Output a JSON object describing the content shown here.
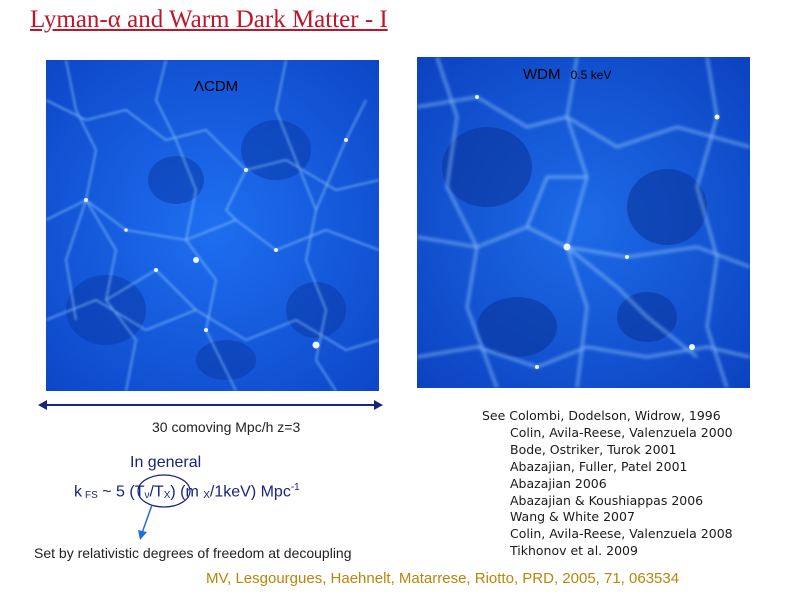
{
  "slide": {
    "title": "Lyman-α and Warm Dark Matter - I",
    "left_panel": {
      "label": "ΛCDM"
    },
    "right_panel": {
      "label_main": "WDM",
      "label_sub": "0.5 keV"
    },
    "scale_caption": "30 comoving Mpc/h  z=3",
    "in_general": "In general",
    "formula": {
      "k": "k",
      "fs": "FS",
      "approx": " ~ 5 (T",
      "nu": "ν",
      "slash": "/T",
      "x": "X",
      "m_open": ") (m ",
      "mx": "X",
      "rest": "/1keV) Mpc",
      "exp": "-1"
    },
    "annotation": "Set by relativistic degrees of freedom at decoupling",
    "references": [
      "See Colombi, Dodelson, Widrow, 1996",
      "Colin, Avila-Reese, Valenzuela 2000",
      "Bode, Ostriker, Turok 2001",
      "Abazajian, Fuller, Patel 2001",
      "Abazajian 2006",
      "Abazajian & Koushiappas 2006",
      "Wang & White 2007",
      "Colin, Avila-Reese, Valenzuela 2008",
      "Tikhonov et al. 2009"
    ],
    "footer": "MV, Lesgourgues, Haehnelt, Matarrese, Riotto,  PRD,  2005, 71, 063534",
    "colors": {
      "title": "#c0142a",
      "sim_base": "#1565e0",
      "sim_filament": "#cfe9ff",
      "footer": "#b8860b",
      "formula": "#1a237e"
    }
  }
}
